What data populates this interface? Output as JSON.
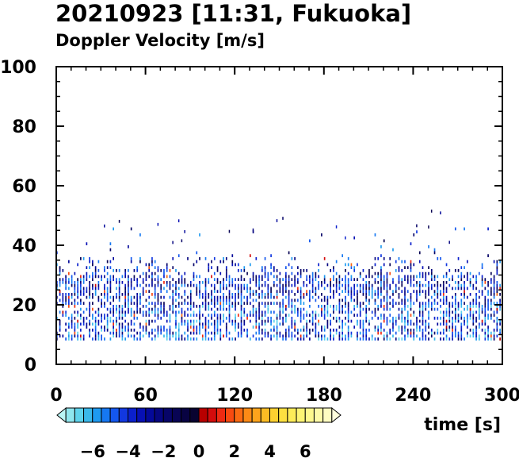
{
  "chart_data": {
    "type": "heatmap",
    "title": "20210923 [11:31, Fukuoka]",
    "subtitle": "Doppler Velocity [m/s]",
    "xlabel": "time [s]",
    "ylabel": "",
    "xlim": [
      0,
      300
    ],
    "ylim": [
      0,
      100
    ],
    "x_ticks": [
      "0",
      "60",
      "120",
      "180",
      "240",
      "300"
    ],
    "y_ticks": [
      "0",
      "20",
      "40",
      "60",
      "80",
      "100"
    ],
    "grid": false,
    "data_extent": {
      "x": [
        0,
        300
      ],
      "y": [
        8,
        51
      ]
    },
    "dominant_value_range": [
      -6,
      -1
    ],
    "colorbar": {
      "orientation": "horizontal",
      "placement": "bottom-left",
      "min": -8,
      "max": 8,
      "step": 0.5,
      "tick_labels": [
        "−6",
        "−4",
        "−2",
        "0",
        "2",
        "4",
        "6"
      ],
      "tick_values": [
        -6,
        -4,
        -2,
        0,
        2,
        4,
        6
      ],
      "colors_negative": [
        "#b9f4f4",
        "#8fe6ee",
        "#5fd3ec",
        "#3ab8ea",
        "#1e9af0",
        "#1678f2",
        "#1457ee",
        "#1238e0",
        "#0b20cc",
        "#0710b4",
        "#04099a",
        "#060680",
        "#070568",
        "#080454",
        "#080342",
        "#080330"
      ],
      "colors_positive": [
        "#b80000",
        "#d40c0c",
        "#ee2a12",
        "#f84a10",
        "#fa6a12",
        "#fc8a16",
        "#fea41c",
        "#fdbc24",
        "#fdd030",
        "#fde040",
        "#fdec58",
        "#fdf474",
        "#fef88e",
        "#fefaa8",
        "#fefcc2",
        "#fffedc"
      ]
    }
  }
}
